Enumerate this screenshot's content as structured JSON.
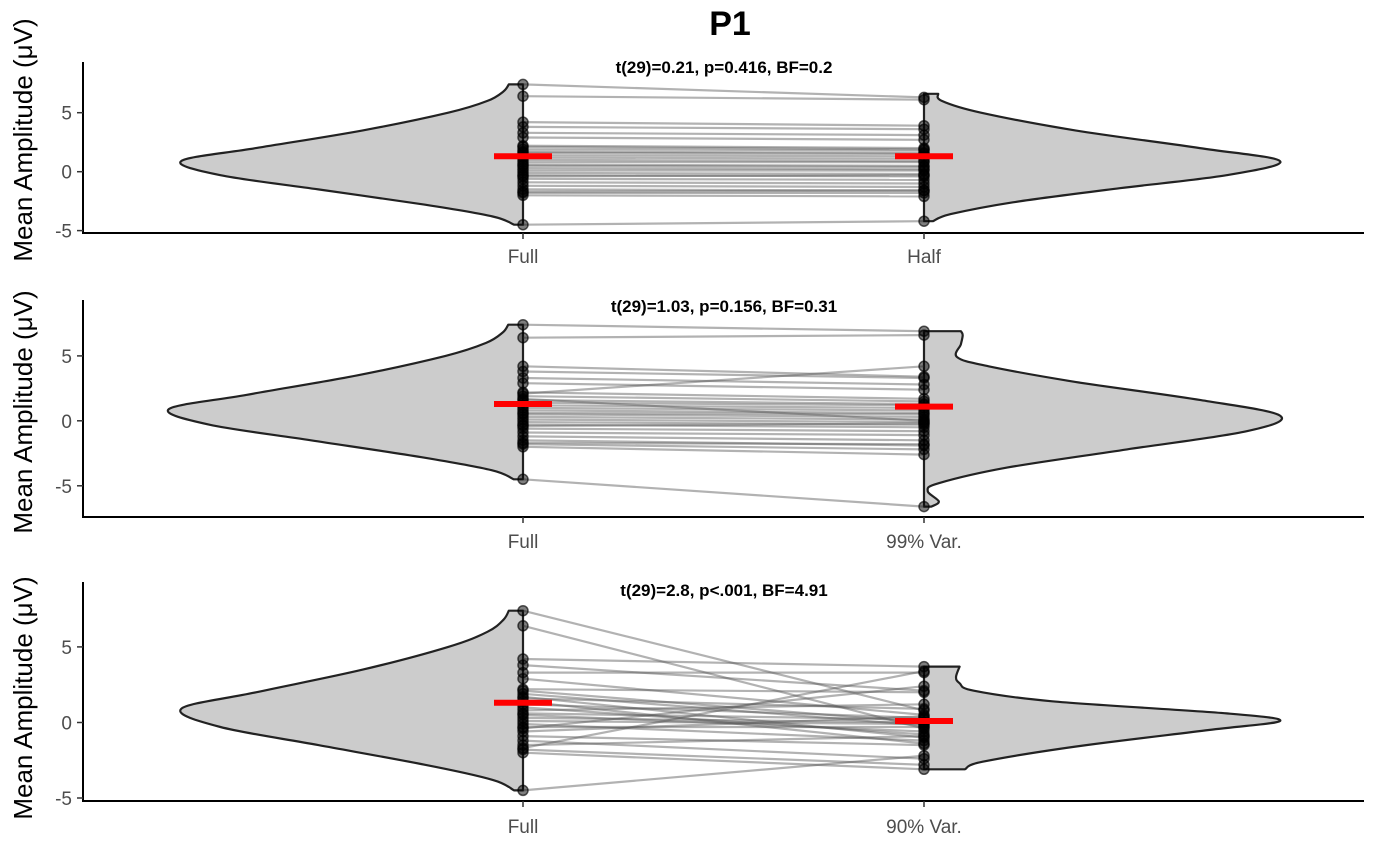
{
  "figure_title": "P1",
  "chart_data": [
    {
      "type": "violin",
      "title": "t(29)=0.21, p=0.416, BF=0.2",
      "ylabel": "Mean Amplitude (μV)",
      "categories": [
        "Full",
        "Half"
      ],
      "yticks": [
        -5,
        0,
        5
      ],
      "ylim": [
        -5.2,
        9.3
      ],
      "means": [
        1.3,
        1.3
      ],
      "left_values": [
        7.4,
        6.4,
        4.2,
        3.8,
        3.3,
        2.9,
        2.2,
        1.9,
        1.6,
        1.4,
        1.2,
        1.0,
        0.8,
        0.5,
        0.3,
        0.1,
        -0.1,
        -0.3,
        -0.6,
        -0.9,
        -1.2,
        -1.5,
        -1.8,
        -2.0,
        2.1,
        1.7,
        0.6,
        -0.4,
        -1.7,
        -4.5
      ],
      "right_values": [
        6.3,
        6.1,
        3.9,
        3.6,
        3.1,
        2.7,
        2.0,
        1.8,
        1.5,
        1.3,
        1.1,
        0.9,
        0.8,
        0.4,
        0.2,
        0.1,
        -0.2,
        -0.4,
        -0.7,
        -1.0,
        -1.3,
        -1.6,
        -1.8,
        -2.1,
        1.9,
        1.6,
        0.5,
        -0.3,
        -1.6,
        -4.2
      ],
      "left_density": [
        [
          -4.5,
          0.05
        ],
        [
          -3.8,
          0.17
        ],
        [
          -2.8,
          0.55
        ],
        [
          -1.5,
          1.15
        ],
        [
          -0.3,
          1.7
        ],
        [
          0.9,
          1.92
        ],
        [
          2.0,
          1.5
        ],
        [
          3.5,
          0.9
        ],
        [
          5.0,
          0.42
        ],
        [
          6.0,
          0.2
        ],
        [
          6.8,
          0.11
        ],
        [
          7.4,
          0.08
        ]
      ],
      "right_density": [
        [
          -4.2,
          0.05
        ],
        [
          -3.6,
          0.15
        ],
        [
          -2.6,
          0.5
        ],
        [
          -1.4,
          1.1
        ],
        [
          -0.3,
          1.7
        ],
        [
          0.9,
          2.0
        ],
        [
          2.0,
          1.55
        ],
        [
          3.5,
          0.85
        ],
        [
          5.0,
          0.32
        ],
        [
          6.0,
          0.1
        ],
        [
          6.6,
          0.08
        ]
      ]
    },
    {
      "type": "violin",
      "title": "t(29)=1.03, p=0.156, BF=0.31",
      "ylabel": "Mean Amplitude (μV)",
      "categories": [
        "Full",
        "99% Var."
      ],
      "yticks": [
        -5,
        0,
        5
      ],
      "ylim": [
        -7.4,
        9.3
      ],
      "means": [
        1.3,
        1.1
      ],
      "left_values": [
        7.4,
        6.4,
        4.2,
        3.8,
        3.3,
        2.9,
        2.2,
        1.9,
        1.6,
        1.4,
        1.2,
        1.0,
        0.8,
        0.5,
        0.3,
        0.1,
        -0.1,
        -0.3,
        -0.6,
        -0.9,
        -1.2,
        -1.5,
        -1.8,
        -2.0,
        2.1,
        1.7,
        0.6,
        -0.4,
        -1.7,
        -4.5
      ],
      "right_values": [
        6.9,
        6.6,
        3.4,
        3.3,
        2.8,
        2.4,
        1.7,
        1.5,
        1.3,
        1.2,
        1.0,
        0.8,
        0.6,
        0.3,
        0.1,
        -0.1,
        -0.3,
        -0.5,
        -0.8,
        -1.1,
        -1.5,
        -1.9,
        -2.2,
        -2.6,
        4.2,
        0.0,
        0.5,
        -0.2,
        -1.8,
        -6.6
      ],
      "left_density": [
        [
          -4.5,
          0.05
        ],
        [
          -3.8,
          0.17
        ],
        [
          -2.8,
          0.55
        ],
        [
          -1.5,
          1.15
        ],
        [
          -0.3,
          1.7
        ],
        [
          0.9,
          1.92
        ],
        [
          2.0,
          1.5
        ],
        [
          3.5,
          0.9
        ],
        [
          5.0,
          0.42
        ],
        [
          6.0,
          0.2
        ],
        [
          6.8,
          0.11
        ],
        [
          7.4,
          0.08
        ]
      ],
      "right_density": [
        [
          -6.6,
          0.04
        ],
        [
          -6.2,
          0.08
        ],
        [
          -5.4,
          0.02
        ],
        [
          -4.8,
          0.08
        ],
        [
          -3.6,
          0.45
        ],
        [
          -2.2,
          1.1
        ],
        [
          -0.8,
          1.75
        ],
        [
          0.4,
          1.93
        ],
        [
          1.6,
          1.5
        ],
        [
          3.0,
          0.82
        ],
        [
          4.2,
          0.35
        ],
        [
          4.9,
          0.18
        ],
        [
          5.9,
          0.2
        ],
        [
          6.6,
          0.21
        ],
        [
          6.9,
          0.2
        ]
      ]
    },
    {
      "type": "violin",
      "title": "t(29)=2.8, p<.001, BF=4.91",
      "ylabel": "Mean Amplitude (μV)",
      "categories": [
        "Full",
        "90% Var."
      ],
      "yticks": [
        -5,
        0,
        5
      ],
      "ylim": [
        -5.2,
        9.3
      ],
      "means": [
        1.3,
        0.1
      ],
      "left_values": [
        7.4,
        6.4,
        4.2,
        3.8,
        3.3,
        2.9,
        2.2,
        1.9,
        1.6,
        1.4,
        1.2,
        1.0,
        0.8,
        0.5,
        0.3,
        0.1,
        -0.1,
        -0.3,
        -0.6,
        -0.9,
        -1.2,
        -1.5,
        -1.8,
        -2.0,
        2.1,
        1.7,
        0.6,
        -0.4,
        -1.7,
        -4.5
      ],
      "right_values": [
        0.8,
        -0.4,
        3.7,
        2.1,
        3.3,
        0.5,
        2.0,
        -0.2,
        0.9,
        -1.4,
        0.3,
        -0.8,
        1.2,
        -0.6,
        0.0,
        -0.1,
        -1.2,
        -0.3,
        0.4,
        -1.5,
        -2.4,
        -0.9,
        -2.8,
        -3.1,
        0.0,
        -1.0,
        0.2,
        2.4,
        3.4,
        -2.2
      ],
      "left_density": [
        [
          -4.5,
          0.05
        ],
        [
          -3.8,
          0.17
        ],
        [
          -2.8,
          0.55
        ],
        [
          -1.5,
          1.15
        ],
        [
          -0.3,
          1.7
        ],
        [
          0.9,
          1.92
        ],
        [
          2.0,
          1.5
        ],
        [
          3.5,
          0.9
        ],
        [
          5.0,
          0.42
        ],
        [
          6.0,
          0.2
        ],
        [
          6.8,
          0.11
        ],
        [
          7.4,
          0.08
        ]
      ],
      "right_density": [
        [
          -3.1,
          0.23
        ],
        [
          -2.6,
          0.33
        ],
        [
          -1.6,
          0.85
        ],
        [
          -0.5,
          1.6
        ],
        [
          0.1,
          2.0
        ],
        [
          0.6,
          1.7
        ],
        [
          1.4,
          0.72
        ],
        [
          2.1,
          0.28
        ],
        [
          2.6,
          0.2
        ],
        [
          3.0,
          0.18
        ],
        [
          3.7,
          0.2
        ]
      ]
    }
  ]
}
